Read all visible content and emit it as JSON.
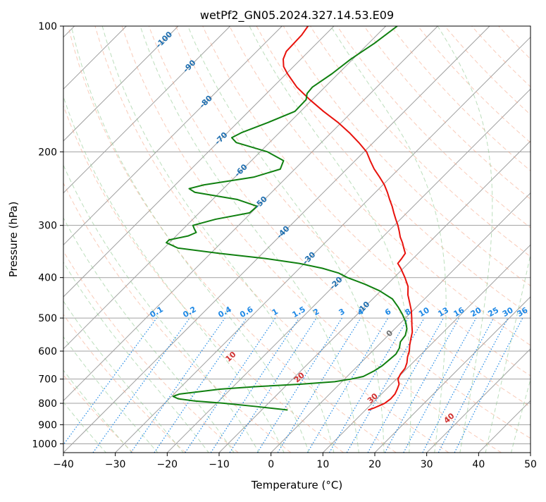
{
  "chart_data": {
    "type": "line",
    "title": "wetPf2_GN05.2024.327.14.53.E09",
    "xlabel": "Temperature (°C)",
    "ylabel": "Pressure (hPa)",
    "xlim": [
      -40,
      50
    ],
    "ylim": [
      1050,
      100
    ],
    "y_scale": "log",
    "grid": true,
    "x_ticks": [
      -40,
      -30,
      -20,
      -10,
      0,
      10,
      20,
      30,
      40,
      50
    ],
    "x_tick_labels": [
      "−40",
      "−30",
      "−20",
      "−10",
      "0",
      "10",
      "20",
      "30",
      "40",
      "50"
    ],
    "y_ticks": [
      100,
      200,
      300,
      400,
      500,
      600,
      700,
      800,
      900,
      1000
    ],
    "y_tick_labels": [
      "100",
      "200",
      "300",
      "400",
      "500",
      "600",
      "700",
      "800",
      "900",
      "1000"
    ],
    "skew": 45,
    "colors": {
      "temperature": "#e8120c",
      "dewpoint": "#108010",
      "isotherm": "#a0a0a0",
      "dry_adiabat": "#f4a080",
      "moist_adiabat": "#90c890",
      "mixing_ratio": "#1e88e5",
      "isotherm_label": "#1f6fb0",
      "dry_adiabat_label": "#d03030"
    },
    "series": [
      {
        "key": "temperature",
        "points": [
          {
            "p": 830,
            "t": 10.5
          },
          {
            "p": 820,
            "t": 11.3
          },
          {
            "p": 800,
            "t": 12.4
          },
          {
            "p": 780,
            "t": 12.7
          },
          {
            "p": 760,
            "t": 12.6
          },
          {
            "p": 740,
            "t": 12.1
          },
          {
            "p": 720,
            "t": 11.5
          },
          {
            "p": 700,
            "t": 10.3
          },
          {
            "p": 680,
            "t": 9.8
          },
          {
            "p": 660,
            "t": 9.6
          },
          {
            "p": 640,
            "t": 8.9
          },
          {
            "p": 620,
            "t": 7.9
          },
          {
            "p": 600,
            "t": 7.1
          },
          {
            "p": 580,
            "t": 6.0
          },
          {
            "p": 560,
            "t": 5.0
          },
          {
            "p": 540,
            "t": 4.0
          },
          {
            "p": 520,
            "t": 2.6
          },
          {
            "p": 500,
            "t": 1.2
          },
          {
            "p": 480,
            "t": -0.3
          },
          {
            "p": 460,
            "t": -2.1
          },
          {
            "p": 440,
            "t": -4.0
          },
          {
            "p": 420,
            "t": -5.6
          },
          {
            "p": 400,
            "t": -7.9
          },
          {
            "p": 380,
            "t": -10.5
          },
          {
            "p": 370,
            "t": -12.0
          },
          {
            "p": 360,
            "t": -12.2
          },
          {
            "p": 350,
            "t": -12.5
          },
          {
            "p": 340,
            "t": -13.8
          },
          {
            "p": 330,
            "t": -15.1
          },
          {
            "p": 320,
            "t": -16.6
          },
          {
            "p": 310,
            "t": -17.9
          },
          {
            "p": 300,
            "t": -19.3
          },
          {
            "p": 290,
            "t": -20.9
          },
          {
            "p": 280,
            "t": -22.5
          },
          {
            "p": 270,
            "t": -24.1
          },
          {
            "p": 260,
            "t": -25.9
          },
          {
            "p": 250,
            "t": -27.7
          },
          {
            "p": 240,
            "t": -29.7
          },
          {
            "p": 230,
            "t": -32.1
          },
          {
            "p": 220,
            "t": -34.7
          },
          {
            "p": 210,
            "t": -37.1
          },
          {
            "p": 200,
            "t": -39.5
          },
          {
            "p": 190,
            "t": -42.8
          },
          {
            "p": 180,
            "t": -46.5
          },
          {
            "p": 170,
            "t": -50.7
          },
          {
            "p": 160,
            "t": -55.6
          },
          {
            "p": 150,
            "t": -60.5
          },
          {
            "p": 140,
            "t": -65.4
          },
          {
            "p": 130,
            "t": -69.8
          },
          {
            "p": 125,
            "t": -71.9
          },
          {
            "p": 120,
            "t": -73.4
          },
          {
            "p": 115,
            "t": -74.3
          },
          {
            "p": 110,
            "t": -74.4
          },
          {
            "p": 105,
            "t": -74.5
          },
          {
            "p": 100,
            "t": -75.0
          }
        ]
      },
      {
        "key": "dewpoint",
        "points": [
          {
            "p": 830,
            "t": -5.0
          },
          {
            "p": 815,
            "t": -11.4
          },
          {
            "p": 800,
            "t": -18.5
          },
          {
            "p": 790,
            "t": -24.6
          },
          {
            "p": 780,
            "t": -28.3
          },
          {
            "p": 770,
            "t": -29.7
          },
          {
            "p": 760,
            "t": -28.9
          },
          {
            "p": 750,
            "t": -25.4
          },
          {
            "p": 740,
            "t": -22.1
          },
          {
            "p": 730,
            "t": -15.9
          },
          {
            "p": 720,
            "t": -7.4
          },
          {
            "p": 710,
            "t": -1.4
          },
          {
            "p": 700,
            "t": 1.2
          },
          {
            "p": 690,
            "t": 3.1
          },
          {
            "p": 670,
            "t": 4.1
          },
          {
            "p": 650,
            "t": 4.7
          },
          {
            "p": 630,
            "t": 4.9
          },
          {
            "p": 610,
            "t": 5.1
          },
          {
            "p": 590,
            "t": 4.6
          },
          {
            "p": 570,
            "t": 3.6
          },
          {
            "p": 550,
            "t": 3.3
          },
          {
            "p": 530,
            "t": 2.3
          },
          {
            "p": 510,
            "t": 0.7
          },
          {
            "p": 490,
            "t": -1.3
          },
          {
            "p": 470,
            "t": -3.6
          },
          {
            "p": 450,
            "t": -6.2
          },
          {
            "p": 430,
            "t": -10.3
          },
          {
            "p": 415,
            "t": -14.3
          },
          {
            "p": 400,
            "t": -19.0
          },
          {
            "p": 390,
            "t": -21.6
          },
          {
            "p": 380,
            "t": -25.6
          },
          {
            "p": 370,
            "t": -31.0
          },
          {
            "p": 360,
            "t": -38.5
          },
          {
            "p": 350,
            "t": -48.3
          },
          {
            "p": 340,
            "t": -57.3
          },
          {
            "p": 330,
            "t": -60.6
          },
          {
            "p": 325,
            "t": -60.6
          },
          {
            "p": 318,
            "t": -57.7
          },
          {
            "p": 312,
            "t": -56.8
          },
          {
            "p": 305,
            "t": -58.0
          },
          {
            "p": 300,
            "t": -58.8
          },
          {
            "p": 290,
            "t": -55.6
          },
          {
            "p": 280,
            "t": -50.3
          },
          {
            "p": 270,
            "t": -50.1
          },
          {
            "p": 260,
            "t": -55.3
          },
          {
            "p": 250,
            "t": -64.8
          },
          {
            "p": 245,
            "t": -66.6
          },
          {
            "p": 240,
            "t": -64.5
          },
          {
            "p": 230,
            "t": -56.4
          },
          {
            "p": 220,
            "t": -52.8
          },
          {
            "p": 210,
            "t": -53.8
          },
          {
            "p": 200,
            "t": -58.6
          },
          {
            "p": 190,
            "t": -66.4
          },
          {
            "p": 185,
            "t": -68.2
          },
          {
            "p": 180,
            "t": -67.3
          },
          {
            "p": 170,
            "t": -64.1
          },
          {
            "p": 160,
            "t": -61.1
          },
          {
            "p": 150,
            "t": -61.2
          },
          {
            "p": 145,
            "t": -62.2
          },
          {
            "p": 140,
            "t": -62.4
          },
          {
            "p": 130,
            "t": -61.2
          },
          {
            "p": 120,
            "t": -60.4
          },
          {
            "p": 110,
            "t": -58.9
          },
          {
            "p": 100,
            "t": -57.8
          }
        ]
      }
    ],
    "isotherm_labels": [
      {
        "text": "-100",
        "t": -100,
        "p": 108
      },
      {
        "text": "-90",
        "t": -90,
        "p": 125
      },
      {
        "text": "-80",
        "t": -80,
        "p": 152
      },
      {
        "text": "-70",
        "t": -70,
        "p": 186
      },
      {
        "text": "-60",
        "t": -60,
        "p": 222
      },
      {
        "text": "-50",
        "t": -50,
        "p": 265
      },
      {
        "text": "-40",
        "t": -40,
        "p": 312
      },
      {
        "text": "-30",
        "t": -30,
        "p": 360
      },
      {
        "text": "-20",
        "t": -20,
        "p": 413
      },
      {
        "text": "-10",
        "t": -10,
        "p": 473
      },
      {
        "text": "0",
        "t": 0,
        "p": 545
      }
    ],
    "mixing_ratio_values": [
      0.1,
      0.2,
      0.4,
      0.6,
      1,
      1.5,
      2,
      3,
      4,
      6,
      8,
      10,
      13,
      16,
      20,
      25,
      30,
      36
    ],
    "mixing_ratio_labels": [
      "0.1",
      "0.2",
      "0.4",
      "0.6",
      "1",
      "1.5",
      "2",
      "3",
      "4",
      "6",
      "8",
      "10",
      "13",
      "16",
      "20",
      "25",
      "30",
      "36"
    ],
    "dry_adiabat_labels": [
      {
        "text": "10",
        "theta": 10,
        "p": 620
      },
      {
        "text": "20",
        "theta": 20,
        "p": 695
      },
      {
        "text": "30",
        "theta": 30,
        "p": 780
      },
      {
        "text": "40",
        "theta": 40,
        "p": 870
      }
    ]
  }
}
